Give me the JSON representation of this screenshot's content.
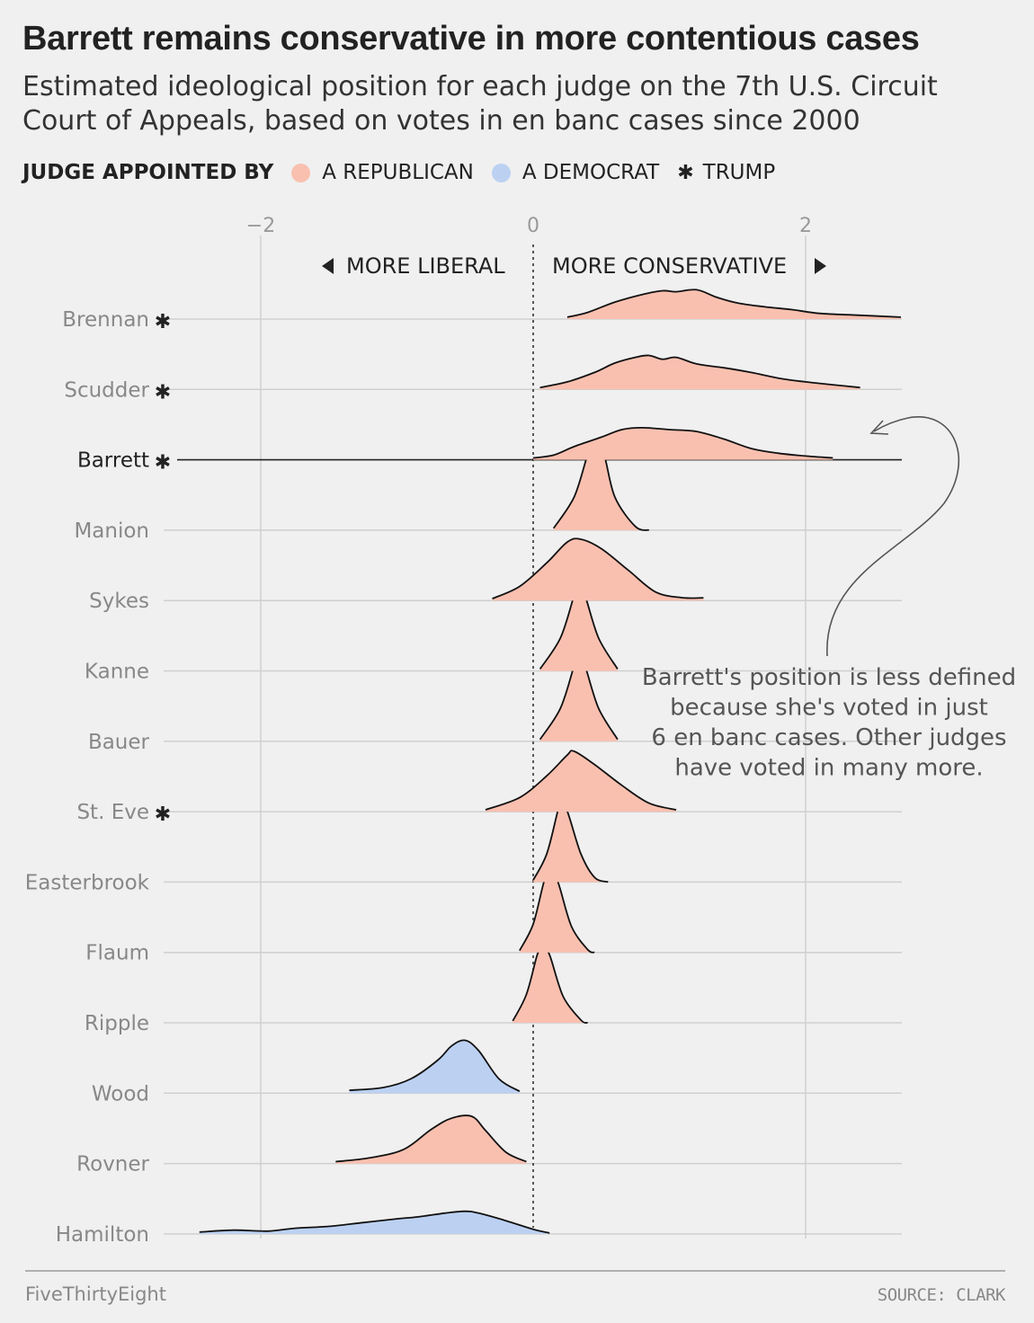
{
  "header": {
    "title": "Barrett remains conservative in more contentious cases",
    "subtitle": "Estimated ideological position for each judge on the 7th U.S. Circuit Court of Appeals, based on votes in en banc cases since 2000"
  },
  "legend": {
    "label": "JUDGE APPOINTED BY",
    "republican": "A REPUBLICAN",
    "democrat": "A DEMOCRAT",
    "trump": "TRUMP",
    "trump_marker": "✱"
  },
  "colors": {
    "republican": "#f9c0b0",
    "democrat": "#bcd1f2",
    "background": "#f0f0f0",
    "gridline": "#cccccc"
  },
  "annotations": {
    "more_liberal": "MORE LIBERAL",
    "more_conservative": "MORE CONSERVATIVE",
    "note": [
      "Barrett's position is less defined",
      "because she's voted in just",
      "6 en banc cases. Other judges",
      "have voted in many more."
    ]
  },
  "footer": {
    "brand": "FiveThirtyEight",
    "source": "SOURCE: CLARK"
  },
  "chart_data": {
    "type": "ridgeline",
    "x_axis": {
      "ticks": [
        -2,
        0,
        2
      ],
      "tick_labels": [
        "−2",
        "0",
        "2"
      ],
      "range": [
        -2.7,
        2.7
      ],
      "reference_line": 0
    },
    "highlighted_judge": "Barrett",
    "judges": [
      {
        "name": "Brennan",
        "party": "republican",
        "trump": true,
        "density": [
          [
            0.25,
            0.02
          ],
          [
            0.4,
            0.07
          ],
          [
            0.6,
            0.18
          ],
          [
            0.8,
            0.26
          ],
          [
            0.95,
            0.3
          ],
          [
            1.05,
            0.29
          ],
          [
            1.2,
            0.31
          ],
          [
            1.35,
            0.23
          ],
          [
            1.5,
            0.17
          ],
          [
            1.7,
            0.13
          ],
          [
            1.9,
            0.1
          ],
          [
            2.1,
            0.06
          ],
          [
            2.4,
            0.04
          ],
          [
            2.7,
            0.02
          ]
        ]
      },
      {
        "name": "Scudder",
        "party": "republican",
        "trump": true,
        "density": [
          [
            0.05,
            0.02
          ],
          [
            0.25,
            0.08
          ],
          [
            0.45,
            0.18
          ],
          [
            0.6,
            0.28
          ],
          [
            0.75,
            0.34
          ],
          [
            0.85,
            0.36
          ],
          [
            0.95,
            0.32
          ],
          [
            1.05,
            0.34
          ],
          [
            1.2,
            0.27
          ],
          [
            1.4,
            0.23
          ],
          [
            1.6,
            0.18
          ],
          [
            1.8,
            0.12
          ],
          [
            2.0,
            0.08
          ],
          [
            2.2,
            0.05
          ],
          [
            2.4,
            0.02
          ]
        ]
      },
      {
        "name": "Barrett",
        "party": "republican",
        "trump": true,
        "density": [
          [
            0.0,
            0.02
          ],
          [
            0.15,
            0.05
          ],
          [
            0.3,
            0.14
          ],
          [
            0.5,
            0.24
          ],
          [
            0.65,
            0.32
          ],
          [
            0.8,
            0.34
          ],
          [
            1.0,
            0.32
          ],
          [
            1.2,
            0.3
          ],
          [
            1.4,
            0.22
          ],
          [
            1.6,
            0.12
          ],
          [
            1.8,
            0.07
          ],
          [
            2.0,
            0.04
          ],
          [
            2.2,
            0.02
          ]
        ]
      },
      {
        "name": "Manion",
        "party": "republican",
        "trump": false,
        "density": [
          [
            0.15,
            0.02
          ],
          [
            0.3,
            0.35
          ],
          [
            0.4,
            0.8
          ],
          [
            0.45,
            0.95
          ],
          [
            0.52,
            0.8
          ],
          [
            0.6,
            0.35
          ],
          [
            0.75,
            0.04
          ],
          [
            0.85,
            0.0
          ]
        ]
      },
      {
        "name": "Sykes",
        "party": "republican",
        "trump": false,
        "density": [
          [
            -0.3,
            0.02
          ],
          [
            -0.1,
            0.15
          ],
          [
            0.1,
            0.4
          ],
          [
            0.25,
            0.62
          ],
          [
            0.35,
            0.65
          ],
          [
            0.5,
            0.55
          ],
          [
            0.7,
            0.32
          ],
          [
            0.9,
            0.09
          ],
          [
            1.1,
            0.03
          ],
          [
            1.25,
            0.03
          ]
        ]
      },
      {
        "name": "Kanne",
        "party": "republican",
        "trump": false,
        "density": [
          [
            0.05,
            0.02
          ],
          [
            0.2,
            0.35
          ],
          [
            0.3,
            0.8
          ],
          [
            0.33,
            0.93
          ],
          [
            0.38,
            0.8
          ],
          [
            0.48,
            0.35
          ],
          [
            0.62,
            0.02
          ]
        ]
      },
      {
        "name": "Bauer",
        "party": "republican",
        "trump": false,
        "density": [
          [
            0.05,
            0.02
          ],
          [
            0.2,
            0.35
          ],
          [
            0.3,
            0.8
          ],
          [
            0.33,
            0.93
          ],
          [
            0.38,
            0.8
          ],
          [
            0.48,
            0.35
          ],
          [
            0.62,
            0.02
          ]
        ]
      },
      {
        "name": "St. Eve",
        "party": "republican",
        "trump": true,
        "density": [
          [
            -0.35,
            0.02
          ],
          [
            -0.1,
            0.15
          ],
          [
            0.1,
            0.38
          ],
          [
            0.25,
            0.6
          ],
          [
            0.3,
            0.64
          ],
          [
            0.45,
            0.5
          ],
          [
            0.65,
            0.28
          ],
          [
            0.85,
            0.09
          ],
          [
            1.05,
            0.02
          ]
        ]
      },
      {
        "name": "Easterbrook",
        "party": "republican",
        "trump": false,
        "density": [
          [
            0.0,
            0.02
          ],
          [
            0.1,
            0.3
          ],
          [
            0.18,
            0.75
          ],
          [
            0.2,
            0.82
          ],
          [
            0.25,
            0.75
          ],
          [
            0.35,
            0.3
          ],
          [
            0.45,
            0.05
          ],
          [
            0.55,
            0.0
          ]
        ]
      },
      {
        "name": "Flaum",
        "party": "republican",
        "trump": false,
        "density": [
          [
            -0.1,
            0.02
          ],
          [
            0.0,
            0.3
          ],
          [
            0.08,
            0.75
          ],
          [
            0.12,
            0.82
          ],
          [
            0.18,
            0.75
          ],
          [
            0.28,
            0.28
          ],
          [
            0.4,
            0.03
          ],
          [
            0.45,
            0.0
          ]
        ]
      },
      {
        "name": "Ripple",
        "party": "republican",
        "trump": false,
        "density": [
          [
            -0.15,
            0.02
          ],
          [
            -0.05,
            0.3
          ],
          [
            0.03,
            0.72
          ],
          [
            0.07,
            0.8
          ],
          [
            0.12,
            0.72
          ],
          [
            0.22,
            0.28
          ],
          [
            0.35,
            0.03
          ],
          [
            0.4,
            0.0
          ]
        ]
      },
      {
        "name": "Wood",
        "party": "democrat",
        "trump": false,
        "density": [
          [
            -1.35,
            0.03
          ],
          [
            -1.1,
            0.06
          ],
          [
            -0.9,
            0.15
          ],
          [
            -0.7,
            0.35
          ],
          [
            -0.6,
            0.5
          ],
          [
            -0.5,
            0.56
          ],
          [
            -0.4,
            0.45
          ],
          [
            -0.25,
            0.15
          ],
          [
            -0.1,
            0.02
          ]
        ]
      },
      {
        "name": "Rovner",
        "party": "republican",
        "trump": false,
        "density": [
          [
            -1.45,
            0.02
          ],
          [
            -1.2,
            0.06
          ],
          [
            -0.95,
            0.15
          ],
          [
            -0.75,
            0.36
          ],
          [
            -0.6,
            0.48
          ],
          [
            -0.45,
            0.5
          ],
          [
            -0.35,
            0.35
          ],
          [
            -0.2,
            0.12
          ],
          [
            -0.05,
            0.02
          ]
        ]
      },
      {
        "name": "Hamilton",
        "party": "democrat",
        "trump": false,
        "density": [
          [
            -2.45,
            0.02
          ],
          [
            -2.2,
            0.04
          ],
          [
            -1.95,
            0.03
          ],
          [
            -1.75,
            0.06
          ],
          [
            -1.5,
            0.08
          ],
          [
            -1.25,
            0.12
          ],
          [
            -1.0,
            0.16
          ],
          [
            -0.85,
            0.18
          ],
          [
            -0.65,
            0.22
          ],
          [
            -0.5,
            0.24
          ],
          [
            -0.4,
            0.22
          ],
          [
            -0.2,
            0.14
          ],
          [
            0.0,
            0.05
          ],
          [
            0.12,
            0.01
          ]
        ]
      }
    ]
  }
}
